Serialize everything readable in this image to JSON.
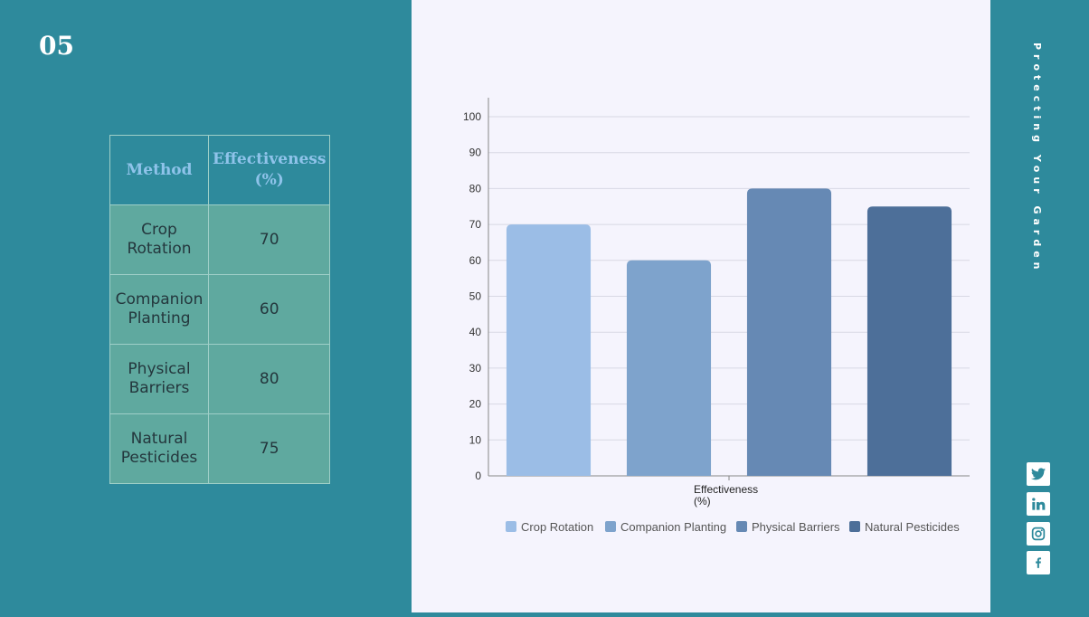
{
  "slide": {
    "number": "05",
    "side_title": "Protecting Your Garden"
  },
  "table": {
    "headers": [
      "Method",
      "Effectiveness (%)"
    ],
    "rows": [
      {
        "method": "Crop Rotation",
        "value": "70"
      },
      {
        "method": "Companion Planting",
        "value": "60"
      },
      {
        "method": "Physical Barriers",
        "value": "80"
      },
      {
        "method": "Natural Pesticides",
        "value": "75"
      }
    ]
  },
  "social_icons": [
    "twitter-icon",
    "linkedin-icon",
    "instagram-icon",
    "facebook-icon"
  ],
  "chart_data": {
    "type": "bar",
    "categories": [
      "Effectiveness (%)"
    ],
    "xlabel": "Effectiveness (%)",
    "ylabel": "",
    "ylim": [
      0,
      100
    ],
    "yticks": [
      0,
      10,
      20,
      30,
      40,
      50,
      60,
      70,
      80,
      90,
      100
    ],
    "grid": true,
    "legend": "bottom",
    "series": [
      {
        "name": "Crop Rotation",
        "values": [
          70
        ],
        "color": "#9bbde6"
      },
      {
        "name": "Companion Planting",
        "values": [
          60
        ],
        "color": "#7ea3cc"
      },
      {
        "name": "Physical Barriers",
        "values": [
          80
        ],
        "color": "#6689b4"
      },
      {
        "name": "Natural Pesticides",
        "values": [
          75
        ],
        "color": "#4d6f99"
      }
    ]
  }
}
